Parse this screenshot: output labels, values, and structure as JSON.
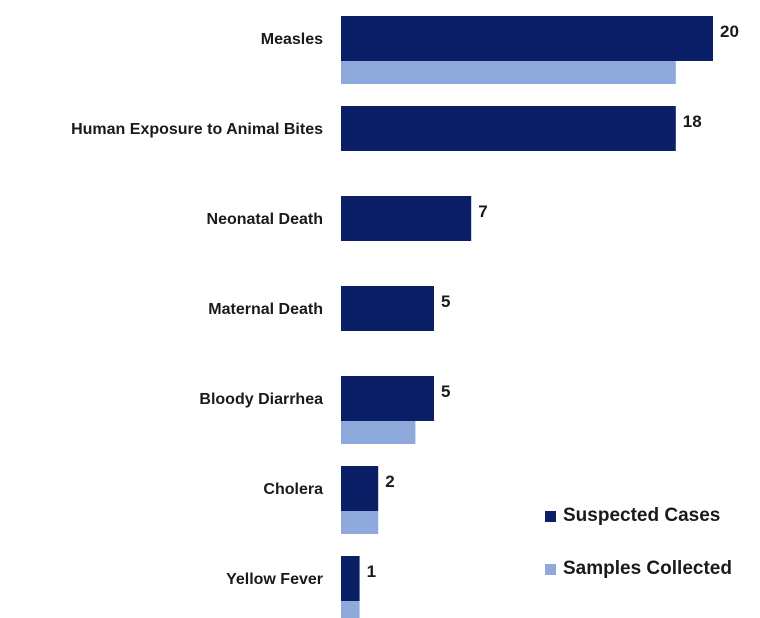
{
  "chart_data": {
    "type": "bar",
    "orientation": "horizontal",
    "categories": [
      "Measles",
      "Human Exposure to Animal Bites",
      "Neonatal Death",
      "Maternal Death",
      "Bloody Diarrhea",
      "Cholera",
      "Yellow Fever"
    ],
    "series": [
      {
        "name": "Suspected Cases",
        "color": "#0b1f66",
        "values": [
          20,
          18,
          7,
          5,
          5,
          2,
          1
        ]
      },
      {
        "name": "Samples Collected",
        "color": "#8eaadc",
        "values": [
          18,
          null,
          null,
          null,
          4,
          2,
          1
        ]
      }
    ],
    "data_labels": [
      "20",
      "18",
      "7",
      "5",
      "5",
      "2",
      "1"
    ],
    "xlim": [
      0,
      20
    ],
    "grid": false,
    "legend_position": "bottom-right"
  },
  "legend": {
    "items": [
      {
        "label": "Suspected Cases",
        "color": "#0b1f66"
      },
      {
        "label": "Samples Collected",
        "color": "#8eaadc"
      }
    ]
  }
}
